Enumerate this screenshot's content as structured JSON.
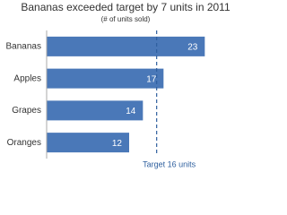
{
  "chart_data": {
    "type": "bar",
    "orientation": "horizontal",
    "title": "Bananas exceeded target by 7 units in 2011",
    "subtitle": "(# of units sold)",
    "categories": [
      "Bananas",
      "Apples",
      "Grapes",
      "Oranges"
    ],
    "values": [
      23,
      17,
      14,
      12
    ],
    "color": "#4a78b8",
    "xlim": [
      0,
      24
    ],
    "target": {
      "value": 16,
      "label": "Target 16 units",
      "color": "#2e5f9e"
    }
  }
}
